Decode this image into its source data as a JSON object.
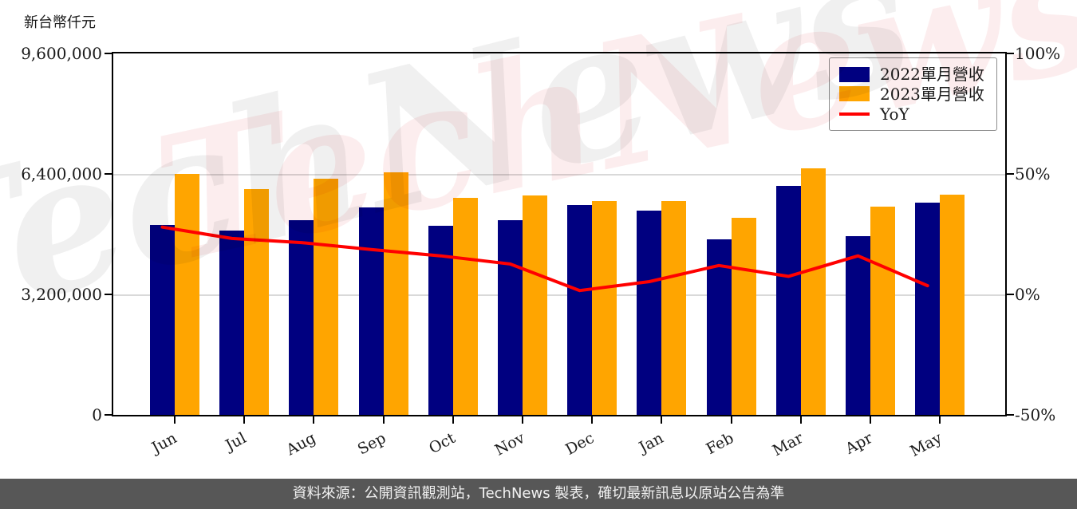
{
  "unit_label": "新台幣仟元",
  "watermark": {
    "text": "TechNews"
  },
  "footer": {
    "text": "資料來源：公開資訊觀測站，TechNews 製表，確切最新訊息以原站公告為準"
  },
  "chart_data": {
    "type": "bar",
    "subtype": "grouped bars with overlaid line (dual axis)",
    "title": "",
    "unit_label": "新台幣仟元",
    "categories": [
      "Jun",
      "Jul",
      "Aug",
      "Sep",
      "Oct",
      "Nov",
      "Dec",
      "Jan",
      "Feb",
      "Mar",
      "Apr",
      "May"
    ],
    "series": [
      {
        "name": "2022單月營收",
        "type": "bar",
        "axis": "left",
        "color": "#000080",
        "values": [
          5035000,
          4895000,
          5168000,
          5504000,
          5014000,
          5168000,
          5567000,
          5420000,
          4664000,
          6077000,
          4754000,
          5630000
        ]
      },
      {
        "name": "2023單月營收",
        "type": "bar",
        "axis": "left",
        "color": "#FFA500",
        "values": [
          6400000,
          5990000,
          6275000,
          6443000,
          5756000,
          5833000,
          5672000,
          5678000,
          5231000,
          6554000,
          5531000,
          5840000
        ]
      },
      {
        "name": "YoY",
        "type": "line",
        "axis": "right",
        "color": "#FF0000",
        "values": [
          27.9,
          23.2,
          21.5,
          18.6,
          16.0,
          12.6,
          1.6,
          5.3,
          12.0,
          7.5,
          16.0,
          3.6
        ]
      }
    ],
    "left_axis": {
      "min": 0,
      "max": 9600000,
      "tick_values": [
        9600000,
        6400000,
        3200000,
        0
      ],
      "tick_labels": [
        "9,600,000",
        "6,400,000",
        "3,200,000",
        "0"
      ]
    },
    "right_axis": {
      "min": -50,
      "max": 100,
      "tick_values": [
        100,
        50,
        0,
        -50
      ],
      "tick_labels": [
        "100%",
        "50%",
        "0%",
        "-50%"
      ]
    },
    "grid": "horizontal gridlines at 6,400,000 and 3,200,000",
    "legend_position": "upper right"
  }
}
